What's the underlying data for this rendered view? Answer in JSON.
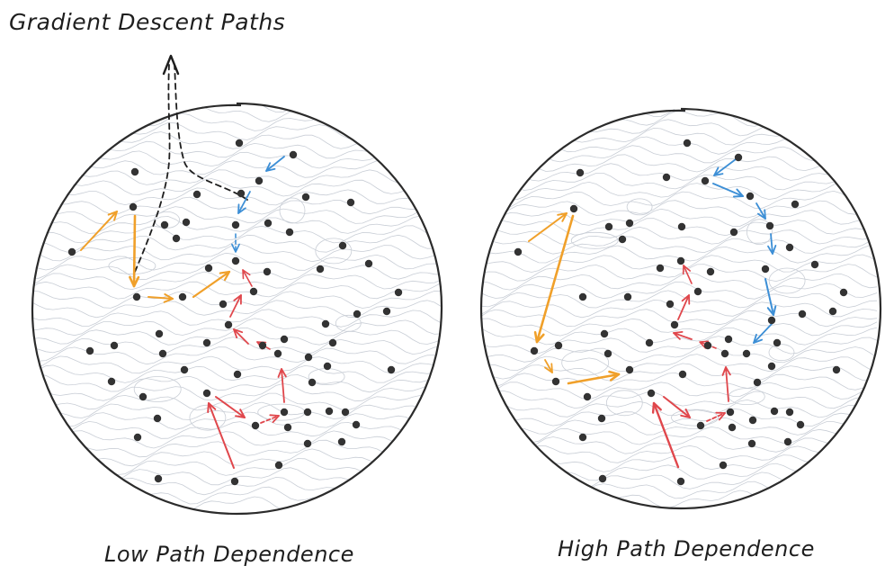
{
  "title": "Gradient Descent Paths",
  "panels": [
    {
      "caption": "Low Path Dependence"
    },
    {
      "caption": "High Path Dependence"
    }
  ],
  "colors": {
    "outline": "#2b2b2b",
    "dot": "#333333",
    "contour": "#c9ced6",
    "orange": "#f0a02a",
    "red": "#e0474c",
    "blue": "#3d8fd6",
    "pointer": "#1e1e1e"
  }
}
